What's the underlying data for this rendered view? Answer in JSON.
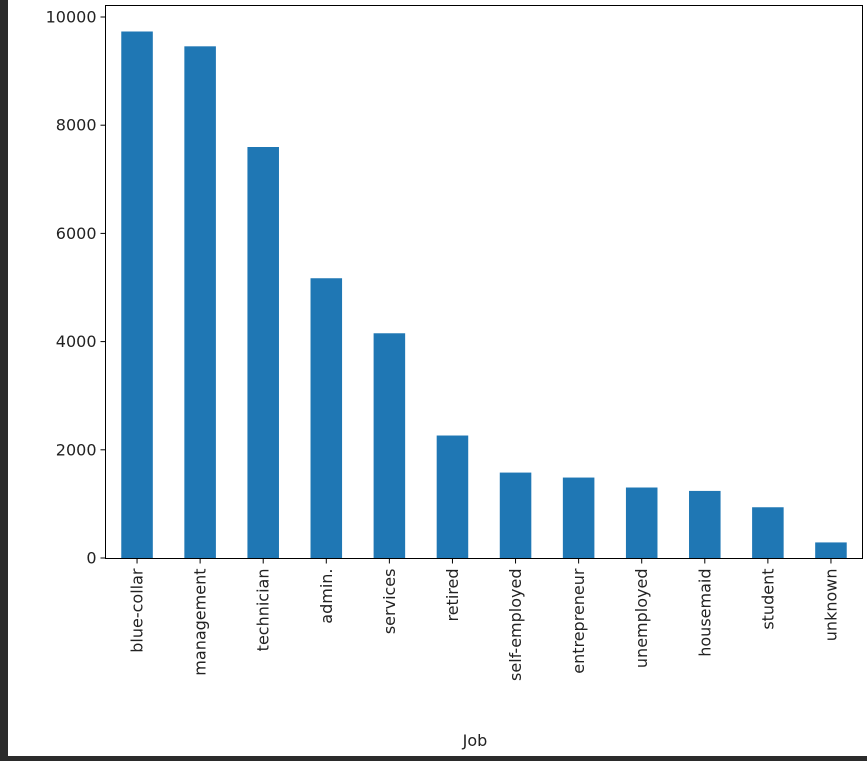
{
  "chart_data": {
    "type": "bar",
    "title": "",
    "xlabel": "Job",
    "ylabel": "",
    "categories": [
      "blue-collar",
      "management",
      "technician",
      "admin.",
      "services",
      "retired",
      "self-employed",
      "entrepreneur",
      "unemployed",
      "housemaid",
      "student",
      "unknown"
    ],
    "values": [
      9732,
      9458,
      7597,
      5171,
      4154,
      2264,
      1579,
      1487,
      1303,
      1240,
      938,
      288
    ],
    "ylim": [
      0,
      10000
    ],
    "yticks": [
      0,
      2000,
      4000,
      6000,
      8000,
      10000
    ],
    "ytick_labels": [
      "0",
      "2000",
      "4000",
      "6000",
      "8000",
      "10000"
    ],
    "bar_color": "#1f77b4",
    "grid": false,
    "legend": "none"
  }
}
